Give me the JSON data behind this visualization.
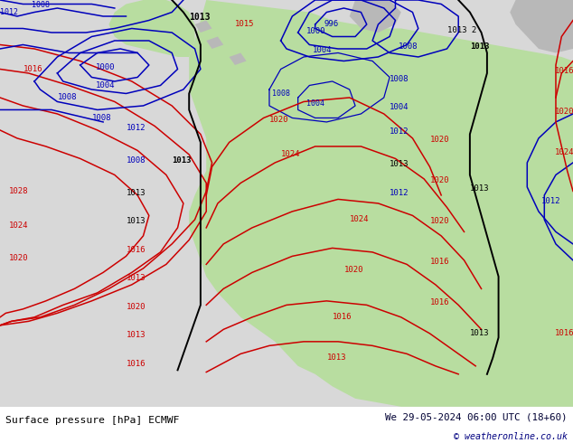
{
  "title_left": "Surface pressure [hPa] ECMWF",
  "title_right": "We 29-05-2024 06:00 UTC (18+60)",
  "copyright": "© weatheronline.co.uk",
  "bg_color": "#d8d8d8",
  "land_color": "#b8dda0",
  "land_color2": "#a8cd90",
  "grey_land": "#b8b8b8",
  "fig_width": 6.34,
  "fig_height": 4.9,
  "dpi": 100,
  "bottom_bar_height": 0.082,
  "blue": "#0000bb",
  "red": "#cc0000",
  "black": "#000000",
  "lw": 1.1
}
